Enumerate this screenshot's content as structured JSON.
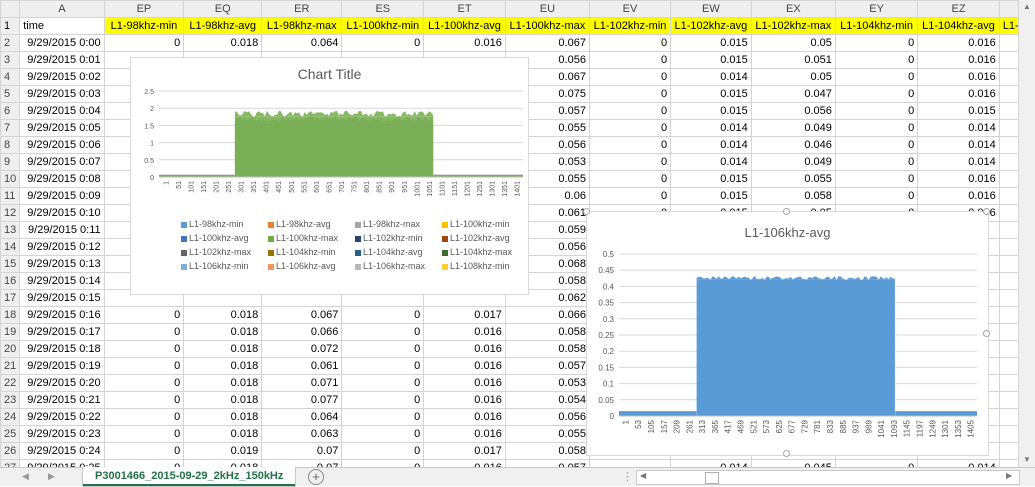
{
  "columns": [
    "",
    "A",
    "EP",
    "EQ",
    "ER",
    "ES",
    "ET",
    "EU",
    "EV",
    "EW",
    "EX",
    "EY",
    "EZ",
    ""
  ],
  "header_row": {
    "row": "1",
    "cells": [
      "time",
      "L1-98khz-min",
      "L1-98khz-avg",
      "L1-98khz-max",
      "L1-100khz-min",
      "L1-100khz-avg",
      "L1-100khz-max",
      "L1-102khz-min",
      "L1-102khz-avg",
      "L1-102khz-max",
      "L1-104khz-min",
      "L1-104khz-avg",
      "L1-10"
    ]
  },
  "rows": [
    {
      "row": "2",
      "cells": [
        "9/29/2015 0:00",
        "0",
        "0.018",
        "0.064",
        "0",
        "0.016",
        "0.067",
        "0",
        "0.015",
        "0.05",
        "0",
        "0.016",
        ""
      ]
    },
    {
      "row": "3",
      "cells": [
        "9/29/2015 0:01",
        "",
        "",
        "",
        "",
        "",
        "0.056",
        "0",
        "0.015",
        "0.051",
        "0",
        "0.016",
        ""
      ]
    },
    {
      "row": "4",
      "cells": [
        "9/29/2015 0:02",
        "",
        "",
        "",
        "",
        "",
        "0.067",
        "0",
        "0.014",
        "0.05",
        "0",
        "0.016",
        ""
      ]
    },
    {
      "row": "5",
      "cells": [
        "9/29/2015 0:03",
        "",
        "",
        "",
        "",
        "",
        "0.075",
        "0",
        "0.015",
        "0.047",
        "0",
        "0.016",
        ""
      ]
    },
    {
      "row": "6",
      "cells": [
        "9/29/2015 0:04",
        "",
        "",
        "",
        "",
        "",
        "0.057",
        "0",
        "0.015",
        "0.056",
        "0",
        "0.015",
        ""
      ]
    },
    {
      "row": "7",
      "cells": [
        "9/29/2015 0:05",
        "",
        "",
        "",
        "",
        "",
        "0.055",
        "0",
        "0.014",
        "0.049",
        "0",
        "0.014",
        ""
      ]
    },
    {
      "row": "8",
      "cells": [
        "9/29/2015 0:06",
        "",
        "",
        "",
        "",
        "",
        "0.056",
        "0",
        "0.014",
        "0.046",
        "0",
        "0.014",
        ""
      ]
    },
    {
      "row": "9",
      "cells": [
        "9/29/2015 0:07",
        "",
        "",
        "",
        "",
        "",
        "0.053",
        "0",
        "0.014",
        "0.049",
        "0",
        "0.014",
        ""
      ]
    },
    {
      "row": "10",
      "cells": [
        "9/29/2015 0:08",
        "",
        "",
        "",
        "",
        "",
        "0.055",
        "0",
        "0.015",
        "0.055",
        "0",
        "0.016",
        ""
      ]
    },
    {
      "row": "11",
      "cells": [
        "9/29/2015 0:09",
        "",
        "",
        "",
        "",
        "",
        "0.06",
        "0",
        "0.015",
        "0.058",
        "0",
        "0.016",
        ""
      ]
    },
    {
      "row": "12",
      "cells": [
        "9/29/2015 0:10",
        "",
        "",
        "",
        "",
        "",
        "0.061",
        "0",
        "0.015",
        "0.05",
        "0",
        "0.016",
        ""
      ]
    },
    {
      "row": "13",
      "cells": [
        "9/29/2015 0:11",
        "",
        "",
        "",
        "",
        "",
        "0.059",
        "",
        "",
        "",
        "",
        "",
        ""
      ]
    },
    {
      "row": "14",
      "cells": [
        "9/29/2015 0:12",
        "",
        "",
        "",
        "",
        "",
        "0.056",
        "",
        "",
        "",
        "",
        "",
        ""
      ]
    },
    {
      "row": "15",
      "cells": [
        "9/29/2015 0:13",
        "",
        "",
        "",
        "",
        "",
        "0.068",
        "",
        "",
        "",
        "",
        "",
        ""
      ]
    },
    {
      "row": "16",
      "cells": [
        "9/29/2015 0:14",
        "",
        "",
        "",
        "",
        "",
        "0.058",
        "",
        "",
        "",
        "",
        "",
        ""
      ]
    },
    {
      "row": "17",
      "cells": [
        "9/29/2015 0:15",
        "",
        "",
        "",
        "",
        "",
        "0.062",
        "",
        "",
        "",
        "",
        "",
        ""
      ]
    },
    {
      "row": "18",
      "cells": [
        "9/29/2015 0:16",
        "0",
        "0.018",
        "0.067",
        "0",
        "0.017",
        "0.066",
        "",
        "",
        "",
        "",
        "",
        ""
      ]
    },
    {
      "row": "19",
      "cells": [
        "9/29/2015 0:17",
        "0",
        "0.018",
        "0.066",
        "0",
        "0.016",
        "0.058",
        "",
        "",
        "",
        "",
        "",
        ""
      ]
    },
    {
      "row": "20",
      "cells": [
        "9/29/2015 0:18",
        "0",
        "0.018",
        "0.072",
        "0",
        "0.016",
        "0.058",
        "",
        "",
        "",
        "",
        "",
        ""
      ]
    },
    {
      "row": "21",
      "cells": [
        "9/29/2015 0:19",
        "0",
        "0.018",
        "0.061",
        "0",
        "0.016",
        "0.057",
        "",
        "",
        "",
        "",
        "",
        ""
      ]
    },
    {
      "row": "22",
      "cells": [
        "9/29/2015 0:20",
        "0",
        "0.018",
        "0.071",
        "0",
        "0.016",
        "0.053",
        "",
        "",
        "",
        "",
        "",
        ""
      ]
    },
    {
      "row": "23",
      "cells": [
        "9/29/2015 0:21",
        "0",
        "0.018",
        "0.077",
        "0",
        "0.016",
        "0.054",
        "",
        "",
        "",
        "",
        "",
        ""
      ]
    },
    {
      "row": "24",
      "cells": [
        "9/29/2015 0:22",
        "0",
        "0.018",
        "0.064",
        "0",
        "0.016",
        "0.056",
        "",
        "",
        "",
        "",
        "",
        ""
      ]
    },
    {
      "row": "25",
      "cells": [
        "9/29/2015 0:23",
        "0",
        "0.018",
        "0.063",
        "0",
        "0.016",
        "0.055",
        "",
        "",
        "",
        "",
        "",
        ""
      ]
    },
    {
      "row": "26",
      "cells": [
        "9/29/2015 0:24",
        "0",
        "0.019",
        "0.07",
        "0",
        "0.017",
        "0.058",
        "",
        "",
        "",
        "",
        "",
        ""
      ]
    },
    {
      "row": "27",
      "cells": [
        "9/29/2015 0:25",
        "0",
        "0.018",
        "0.07",
        "0",
        "0.016",
        "0.057",
        "",
        "0.014",
        "0.045",
        "0",
        "0.014",
        ""
      ]
    }
  ],
  "charts": {
    "chart1": {
      "title": "Chart Title",
      "y_ticks": [
        "2.5",
        "2",
        "1.5",
        "1",
        "0.5",
        "0"
      ],
      "x_ticks": [
        "1",
        "51",
        "101",
        "151",
        "201",
        "251",
        "301",
        "351",
        "401",
        "451",
        "501",
        "551",
        "601",
        "651",
        "701",
        "751",
        "801",
        "851",
        "901",
        "951",
        "1001",
        "1051",
        "1101",
        "1151",
        "1201",
        "1251",
        "1301",
        "1351",
        "1401"
      ],
      "legend": [
        {
          "label": "L1-98khz-min",
          "color": "#5b9bd5"
        },
        {
          "label": "L1-98khz-avg",
          "color": "#ed7d31"
        },
        {
          "label": "L1-98khz-max",
          "color": "#a5a5a5"
        },
        {
          "label": "L1-100khz-min",
          "color": "#ffc000"
        },
        {
          "label": "L1-100khz-avg",
          "color": "#4472c4"
        },
        {
          "label": "L1-100khz-max",
          "color": "#70ad47"
        },
        {
          "label": "L1-102khz-min",
          "color": "#264478"
        },
        {
          "label": "L1-102khz-avg",
          "color": "#9e480e"
        },
        {
          "label": "L1-102khz-max",
          "color": "#636363"
        },
        {
          "label": "L1-104khz-min",
          "color": "#997300"
        },
        {
          "label": "L1-104khz-avg",
          "color": "#255e91"
        },
        {
          "label": "L1-104khz-max",
          "color": "#43682b"
        },
        {
          "label": "L1-106khz-min",
          "color": "#7cafdd"
        },
        {
          "label": "L1-106khz-avg",
          "color": "#f1975a"
        },
        {
          "label": "L1-106khz-max",
          "color": "#b7b7b7"
        },
        {
          "label": "L1-108khz-min",
          "color": "#ffcd33"
        }
      ]
    },
    "chart2": {
      "title": "L1-106khz-avg",
      "color": "#5b9bd5",
      "y_ticks": [
        "0.5",
        "0.45",
        "0.4",
        "0.35",
        "0.3",
        "0.25",
        "0.2",
        "0.15",
        "0.1",
        "0.05",
        "0"
      ],
      "x_ticks": [
        "1",
        "53",
        "105",
        "157",
        "209",
        "261",
        "313",
        "365",
        "417",
        "469",
        "521",
        "573",
        "625",
        "677",
        "729",
        "781",
        "833",
        "885",
        "937",
        "989",
        "1041",
        "1093",
        "1145",
        "1197",
        "1249",
        "1301",
        "1353",
        "1405"
      ]
    }
  },
  "chart_data": [
    {
      "type": "area",
      "title": "Chart Title",
      "ylim": [
        0,
        2.5
      ],
      "x_range": [
        1,
        1440
      ],
      "series": [
        {
          "name": "L1-98khz-max",
          "segments": [
            {
              "x": [
                1,
                300
              ],
              "y": 0.07
            },
            {
              "x": [
                301,
                1085
              ],
              "y": 1.6
            },
            {
              "x": [
                1086,
                1440
              ],
              "y": 0.07
            }
          ]
        },
        {
          "name": "L1-100khz-max",
          "segments": [
            {
              "x": [
                1,
                300
              ],
              "y": 0.06
            },
            {
              "x": [
                301,
                1085
              ],
              "y": 1.75
            },
            {
              "x": [
                1086,
                1440
              ],
              "y": 0.06
            }
          ]
        }
      ]
    },
    {
      "type": "area",
      "title": "L1-106khz-avg",
      "ylim": [
        0,
        0.5
      ],
      "x_range": [
        1,
        1440
      ],
      "series": [
        {
          "name": "L1-106khz-avg",
          "segments": [
            {
              "x": [
                1,
                312
              ],
              "y": 0.015
            },
            {
              "x": [
                313,
                1110
              ],
              "y": 0.42
            },
            {
              "x": [
                1111,
                1440
              ],
              "y": 0.015
            }
          ]
        }
      ]
    }
  ],
  "sheet_tab": "P3001466_2015-09-29_2kHz_150kHz",
  "new_sheet_icon": "plus-icon",
  "scroll_icons": [
    "scroll-up-icon",
    "scroll-down-icon",
    "scroll-left-icon",
    "scroll-right-icon"
  ]
}
